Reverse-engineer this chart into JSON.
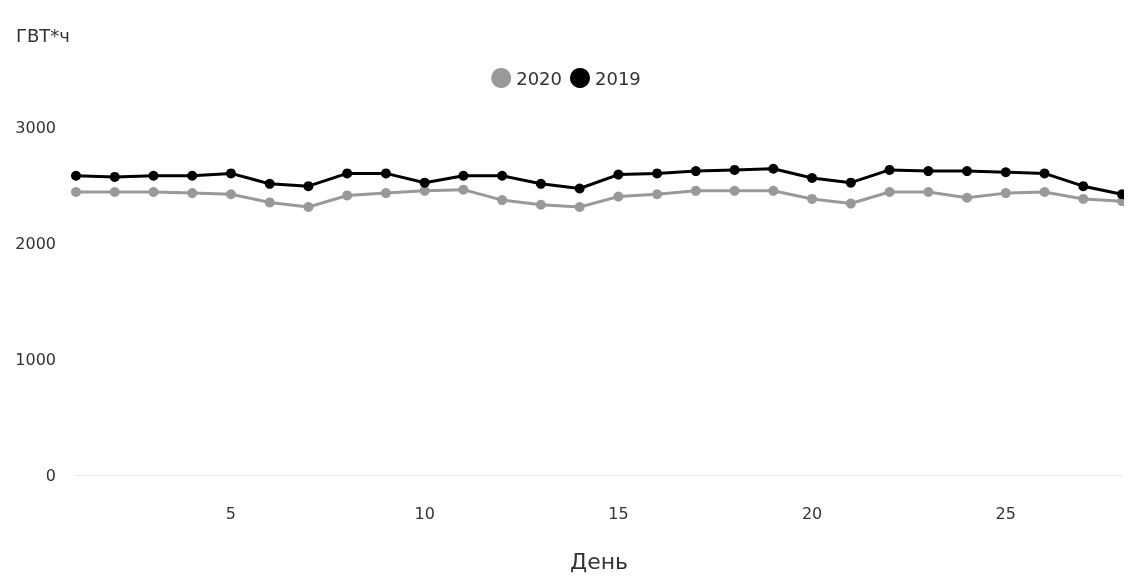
{
  "chart_data": {
    "type": "line",
    "ylabel": "ГВТ*ч",
    "xlabel": "День",
    "x": [
      1,
      2,
      3,
      4,
      5,
      6,
      7,
      8,
      9,
      10,
      11,
      12,
      13,
      14,
      15,
      16,
      17,
      18,
      19,
      20,
      21,
      22,
      23,
      24,
      25,
      26,
      27,
      28
    ],
    "series": [
      {
        "name": "2020",
        "color": "#999999",
        "values": [
          2440,
          2440,
          2440,
          2430,
          2420,
          2350,
          2310,
          2410,
          2430,
          2450,
          2460,
          2370,
          2330,
          2310,
          2400,
          2420,
          2450,
          2450,
          2450,
          2380,
          2340,
          2440,
          2440,
          2390,
          2430,
          2440,
          2380,
          2360
        ]
      },
      {
        "name": "2019",
        "color": "#000000",
        "values": [
          2580,
          2570,
          2580,
          2580,
          2600,
          2510,
          2490,
          2600,
          2600,
          2520,
          2580,
          2580,
          2510,
          2470,
          2590,
          2600,
          2620,
          2630,
          2640,
          2560,
          2520,
          2630,
          2620,
          2620,
          2610,
          2600,
          2490,
          2420
        ]
      }
    ],
    "xlim": [
      1,
      28
    ],
    "xticks": [
      5,
      10,
      15,
      20,
      25
    ],
    "ylim": [
      0,
      3000
    ],
    "yticks": [
      0,
      1000,
      2000,
      3000
    ],
    "grid": false,
    "legend": "top",
    "marker": "circle",
    "line_style": "solid"
  }
}
